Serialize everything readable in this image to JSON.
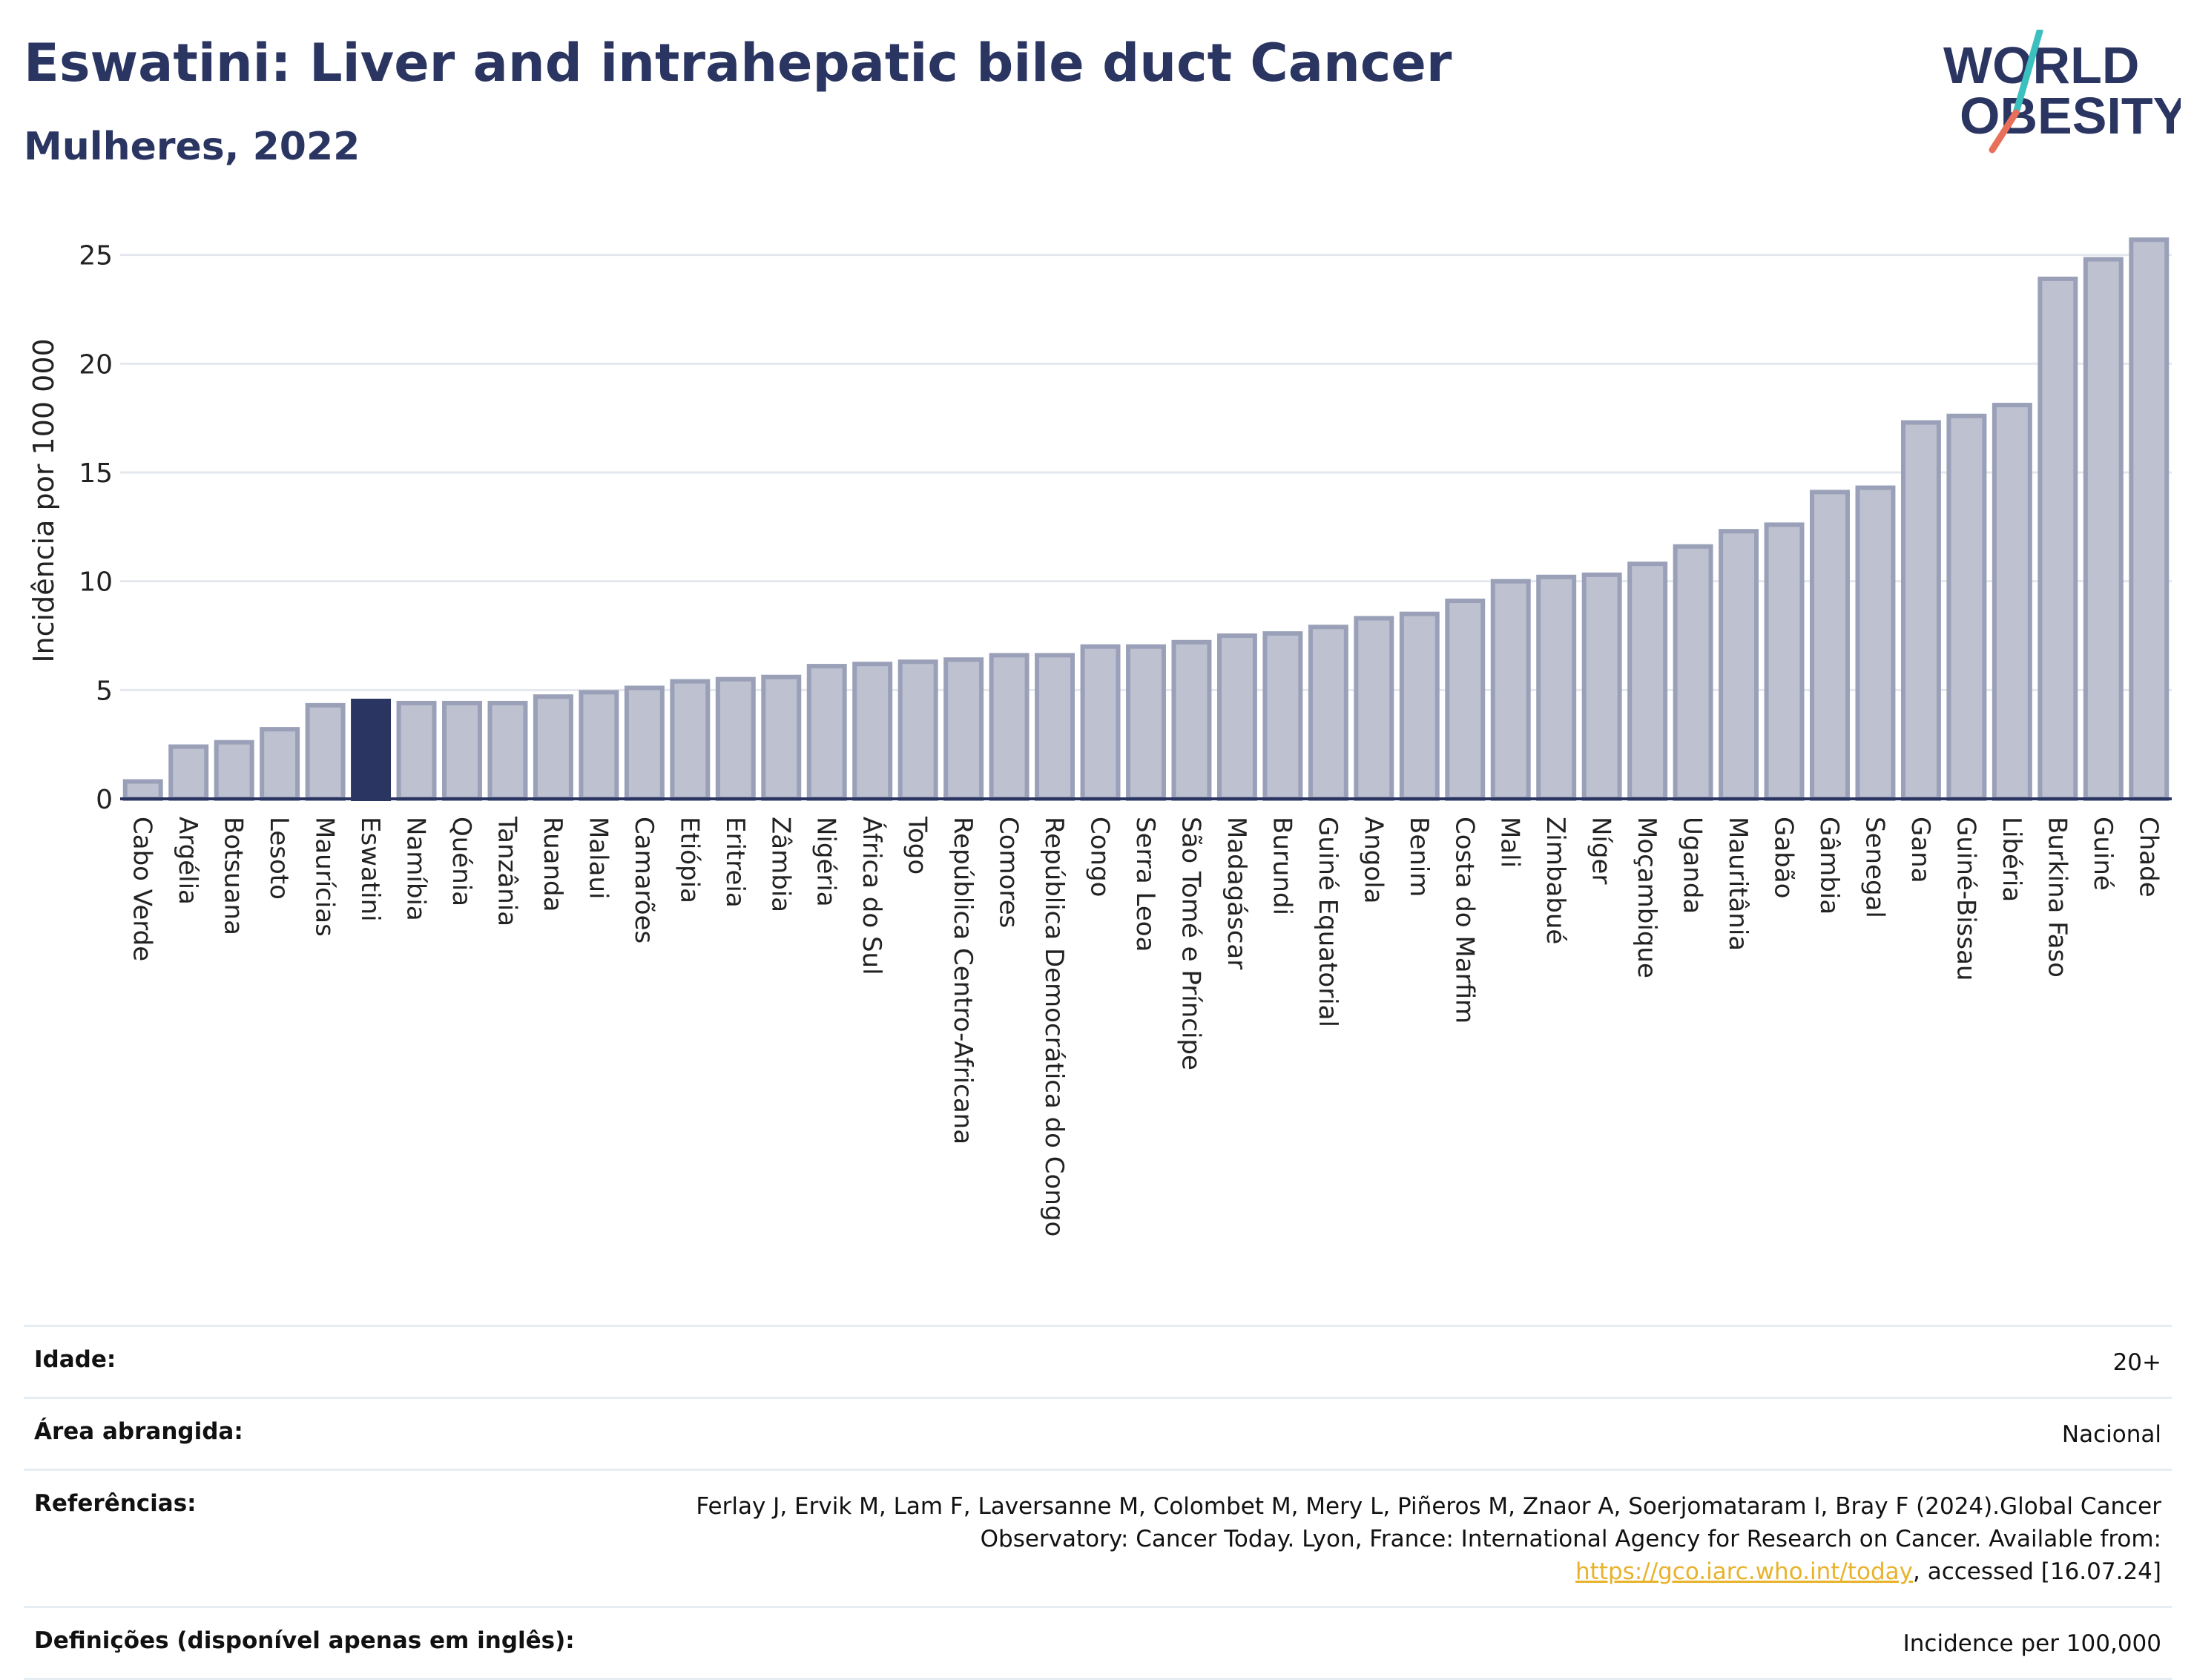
{
  "header": {
    "title": "Eswatini: Liver and intrahepatic bile duct Cancer",
    "subtitle": "Mulheres, 2022"
  },
  "logo": {
    "line1": "WORLD",
    "line2": "OBESITY",
    "icon": "world-obesity-logo"
  },
  "colors": {
    "bar": "#bdc1d0",
    "bar_edge": "#9aa0b8",
    "highlight": "#2a3561",
    "accent_teal": "#3bbfbf",
    "accent_coral": "#e8705a"
  },
  "chart_data": {
    "type": "bar",
    "ylabel": "Incidência por 100 000",
    "ylim": [
      0,
      27
    ],
    "yticks": [
      0,
      5,
      10,
      15,
      20,
      25
    ],
    "grid": true,
    "highlight": "Eswatini",
    "categories": [
      "Cabo Verde",
      "Argélia",
      "Botsuana",
      "Lesoto",
      "Maurícias",
      "Eswatini",
      "Namíbia",
      "Quénia",
      "Tanzânia",
      "Ruanda",
      "Malaui",
      "Camarões",
      "Etiópia",
      "Eritreia",
      "Zâmbia",
      "Nigéria",
      "África do Sul",
      "Togo",
      "República Centro-Africana",
      "Comores",
      "República Democrática do Congo",
      "Congo",
      "Serra Leoa",
      "São Tomé e Príncipe",
      "Madagáscar",
      "Burundi",
      "Guiné Equatorial",
      "Angola",
      "Benim",
      "Costa do Marfim",
      "Mali",
      "Zimbabué",
      "Níger",
      "Moçambique",
      "Uganda",
      "Mauritânia",
      "Gabão",
      "Gâmbia",
      "Senegal",
      "Gana",
      "Guiné-Bissau",
      "Libéria",
      "Burkina Faso",
      "Guiné",
      "Chade"
    ],
    "values": [
      0.8,
      2.4,
      2.6,
      3.2,
      4.3,
      4.5,
      4.4,
      4.4,
      4.4,
      4.7,
      4.9,
      5.1,
      5.4,
      5.5,
      5.6,
      6.1,
      6.2,
      6.3,
      6.4,
      6.6,
      6.6,
      7.0,
      7.0,
      7.2,
      7.5,
      7.6,
      7.9,
      8.3,
      8.5,
      9.1,
      10.0,
      10.2,
      10.3,
      10.8,
      11.6,
      12.3,
      12.6,
      14.1,
      14.3,
      17.3,
      17.6,
      18.1,
      23.9,
      24.8,
      25.7
    ]
  },
  "info": {
    "rows": [
      {
        "label": "Idade:",
        "value": "20+"
      },
      {
        "label": "Área abrangida:",
        "value": "Nacional"
      },
      {
        "label": "Referências:",
        "value_pre": "Ferlay J, Ervik M, Lam F, Laversanne M, Colombet M, Mery L, Piñeros M, Znaor A, Soerjomataram I, Bray F (2024).Global Cancer Observatory: Cancer Today. Lyon, France: International Agency for Research on Cancer. Available from: ",
        "link": "https://gco.iarc.who.int/today",
        "value_post": ", accessed [16.07.24]"
      },
      {
        "label": "Definições (disponível apenas em inglês):",
        "value": "Incidence per 100,000"
      }
    ]
  }
}
